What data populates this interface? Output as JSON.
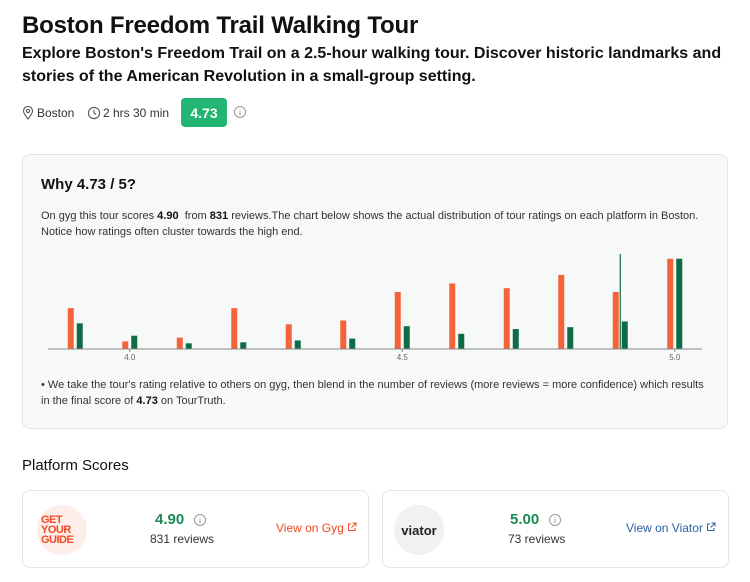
{
  "header": {
    "title": "Boston Freedom Trail Walking Tour",
    "subtitle": "Explore Boston's Freedom Trail on a 2.5-hour walking tour. Discover historic landmarks and stories of the American Revolution in a small-group setting.",
    "location": "Boston",
    "duration": "2 hrs 30 min",
    "score": "4.73"
  },
  "why": {
    "title": "Why 4.73 / 5?",
    "intro": {
      "prefix": "On gyg this tour scores",
      "score": "4.90",
      "middle": "from",
      "count": "831",
      "rest": "reviews.The chart below shows the actual distribution of tour ratings on each platform in Boston. Notice how ratings often cluster towards the high end."
    },
    "note": {
      "prefix": "• We take the tour's rating relative to others on gyg, then blend in the number of reviews (more reviews = more confidence) which results in the final score of",
      "score": "4.73",
      "suffix": "on TourTruth."
    }
  },
  "chart_data": {
    "type": "bar",
    "x": [
      3.9,
      4.0,
      4.1,
      4.2,
      4.3,
      4.4,
      4.5,
      4.6,
      4.7,
      4.8,
      4.9,
      5.0
    ],
    "series": [
      {
        "color": "#f4623a",
        "values": [
          43,
          8,
          12,
          43,
          26,
          30,
          60,
          69,
          64,
          78,
          60,
          95
        ]
      },
      {
        "color": "#0e6b45",
        "values": [
          27,
          14,
          6,
          7,
          9,
          11,
          24,
          16,
          21,
          23,
          29,
          95
        ]
      }
    ],
    "xlim": [
      3.85,
      5.05
    ],
    "xticks": [
      {
        "value": 4,
        "label": "4.0"
      },
      4.5,
      {
        "value": 5,
        "label": "5.0"
      }
    ],
    "ylim": [
      0,
      100
    ],
    "reference_line": {
      "x": 4.9,
      "color": "#0e6b45"
    }
  },
  "platforms": {
    "title": "Platform Scores",
    "items": [
      {
        "logo": [
          "GET",
          "YOUR",
          "GUIDE"
        ],
        "score": "4.90",
        "reviews": "831 reviews",
        "link": "View on Gyg"
      },
      {
        "logo": [
          "viator"
        ],
        "score": "5.00",
        "reviews": "73 reviews",
        "link": "View on Viator"
      }
    ]
  }
}
